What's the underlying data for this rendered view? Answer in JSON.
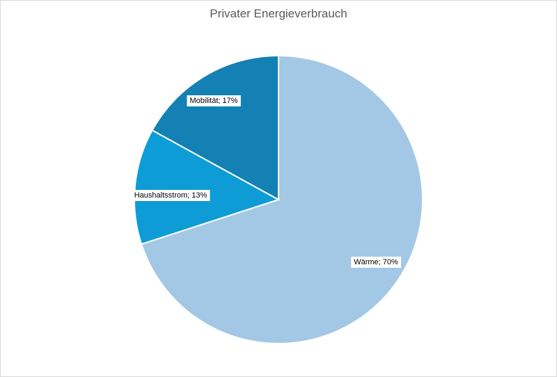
{
  "chart_data": {
    "type": "pie",
    "title": "Privater Energieverbrauch",
    "slices": [
      {
        "label": "Wärme",
        "value": 70,
        "color": "#a3c8e6",
        "data_label": "Wärme; 70%"
      },
      {
        "label": "Haushaltsstrom",
        "value": 13,
        "color": "#0e9cd6",
        "data_label": "Haushaltsstrom; 13%"
      },
      {
        "label": "Mobilität",
        "value": 17,
        "color": "#1381b3",
        "data_label": "Mobilität; 17%"
      }
    ],
    "legend": "none"
  }
}
